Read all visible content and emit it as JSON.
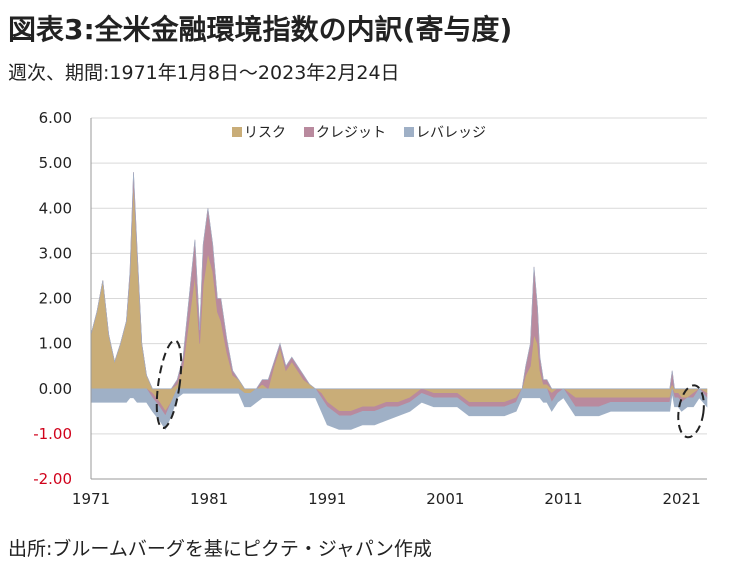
{
  "header": {
    "title": "図表3:全米金融環境指数の内訳(寄与度)",
    "subtitle": "週次、期間:1971年1月8日～2023年2月24日"
  },
  "footer": {
    "source": "出所:ブルームバーグを基にピクテ・ジャパン作成"
  },
  "colors": {
    "risk": "#c9ad78",
    "credit": "#b98a9e",
    "leverage": "#9fb0c6",
    "negative_tick": "#d0021b",
    "grid": "#d9d9d9",
    "annotation": "#222222"
  },
  "chart_data": {
    "type": "area",
    "stacked": true,
    "x_ticks": [
      "1971",
      "1981",
      "1991",
      "2001",
      "2011",
      "2021"
    ],
    "y_ticks": [
      "6.00",
      "5.00",
      "4.00",
      "3.00",
      "2.00",
      "1.00",
      "0.00",
      "-1.00",
      "-2.00"
    ],
    "ylim": [
      -2,
      6
    ],
    "xlim": [
      1971.0,
      2023.15
    ],
    "grid": true,
    "legend_position": "top-center",
    "x": [
      1971.0,
      1971.5,
      1972.0,
      1972.5,
      1973.0,
      1973.5,
      1974.0,
      1974.3,
      1974.6,
      1974.9,
      1975.3,
      1975.7,
      1976.2,
      1976.8,
      1977.3,
      1977.8,
      1978.3,
      1978.8,
      1979.3,
      1979.8,
      1980.2,
      1980.5,
      1980.9,
      1981.3,
      1981.7,
      1982.0,
      1982.5,
      1983.0,
      1983.5,
      1984.0,
      1984.5,
      1985.0,
      1985.5,
      1986.0,
      1986.5,
      1987.0,
      1987.5,
      1988.0,
      1988.5,
      1989.0,
      1989.5,
      1990.0,
      1990.5,
      1991.0,
      1992.0,
      1993.0,
      1994.0,
      1995.0,
      1996.0,
      1997.0,
      1998.0,
      1999.0,
      2000.0,
      2001.0,
      2002.0,
      2003.0,
      2004.0,
      2005.0,
      2006.0,
      2007.0,
      2007.5,
      2007.8,
      2008.2,
      2008.5,
      2008.8,
      2009.0,
      2009.3,
      2009.6,
      2010.0,
      2010.5,
      2011.0,
      2011.5,
      2012.0,
      2013.0,
      2014.0,
      2015.0,
      2016.0,
      2017.0,
      2018.0,
      2019.0,
      2020.0,
      2020.2,
      2020.4,
      2020.7,
      2021.0,
      2021.5,
      2022.0,
      2022.5,
      2023.15
    ],
    "series": [
      {
        "name": "リスク",
        "values": [
          1.2,
          1.7,
          2.4,
          1.2,
          0.6,
          1.0,
          1.5,
          2.5,
          4.6,
          3.0,
          1.0,
          0.3,
          -0.1,
          -0.3,
          -0.5,
          -0.3,
          0.1,
          0.5,
          1.5,
          2.5,
          1.0,
          2.3,
          3.0,
          2.6,
          1.7,
          1.5,
          0.8,
          0.3,
          0.2,
          -0.1,
          -0.1,
          0.0,
          0.1,
          0.0,
          0.5,
          0.9,
          0.4,
          0.6,
          0.4,
          0.2,
          0.1,
          0.0,
          -0.1,
          -0.3,
          -0.5,
          -0.5,
          -0.4,
          -0.4,
          -0.3,
          -0.3,
          -0.2,
          0.0,
          -0.1,
          -0.1,
          -0.1,
          -0.3,
          -0.3,
          -0.3,
          -0.3,
          -0.2,
          0.0,
          0.3,
          0.5,
          1.2,
          1.0,
          0.4,
          0.1,
          0.1,
          -0.1,
          0.0,
          0.0,
          -0.1,
          -0.2,
          -0.2,
          -0.2,
          -0.2,
          -0.2,
          -0.2,
          -0.2,
          -0.2,
          -0.2,
          0.1,
          -0.1,
          -0.1,
          -0.2,
          -0.2,
          -0.1,
          0.0,
          -0.1
        ]
      },
      {
        "name": "クレジット",
        "values": [
          0.0,
          0.0,
          0.0,
          0.0,
          0.0,
          0.0,
          0.0,
          0.1,
          0.2,
          0.1,
          0.0,
          0.0,
          -0.1,
          -0.1,
          -0.1,
          0.0,
          0.1,
          0.2,
          0.5,
          0.8,
          0.3,
          0.9,
          1.0,
          0.6,
          0.3,
          0.5,
          0.3,
          0.1,
          0.0,
          0.0,
          0.0,
          0.0,
          0.1,
          0.2,
          0.1,
          0.1,
          0.1,
          0.1,
          0.1,
          0.1,
          0.0,
          0.0,
          -0.1,
          -0.1,
          -0.1,
          -0.1,
          -0.1,
          -0.1,
          -0.1,
          -0.1,
          -0.1,
          -0.1,
          -0.1,
          -0.1,
          -0.1,
          -0.1,
          -0.1,
          -0.1,
          -0.1,
          -0.1,
          0.0,
          0.2,
          0.5,
          1.5,
          0.8,
          0.3,
          0.1,
          0.1,
          -0.2,
          -0.1,
          0.0,
          -0.1,
          -0.2,
          -0.2,
          -0.2,
          -0.1,
          -0.1,
          -0.1,
          -0.1,
          -0.1,
          -0.1,
          0.3,
          -0.1,
          -0.1,
          -0.1,
          0.0,
          -0.1,
          0.0,
          -0.1
        ]
      },
      {
        "name": "レバレッジ",
        "values": [
          -0.3,
          -0.3,
          -0.3,
          -0.3,
          -0.3,
          -0.3,
          -0.3,
          -0.2,
          -0.2,
          -0.3,
          -0.3,
          -0.3,
          -0.3,
          -0.3,
          -0.3,
          -0.3,
          -0.2,
          -0.1,
          -0.1,
          -0.1,
          -0.1,
          -0.1,
          -0.1,
          -0.1,
          -0.1,
          -0.1,
          -0.1,
          -0.1,
          -0.1,
          -0.3,
          -0.3,
          -0.3,
          -0.2,
          -0.2,
          -0.2,
          -0.2,
          -0.2,
          -0.2,
          -0.2,
          -0.2,
          -0.2,
          -0.2,
          -0.3,
          -0.4,
          -0.3,
          -0.3,
          -0.3,
          -0.3,
          -0.3,
          -0.2,
          -0.2,
          -0.2,
          -0.2,
          -0.2,
          -0.2,
          -0.2,
          -0.2,
          -0.2,
          -0.2,
          -0.2,
          -0.2,
          -0.2,
          -0.2,
          -0.2,
          -0.2,
          -0.2,
          -0.3,
          -0.3,
          -0.2,
          -0.2,
          -0.2,
          -0.2,
          -0.2,
          -0.2,
          -0.2,
          -0.2,
          -0.2,
          -0.2,
          -0.2,
          -0.2,
          -0.2,
          -0.1,
          -0.2,
          -0.2,
          -0.2,
          -0.2,
          -0.2,
          -0.2,
          -0.2
        ]
      }
    ],
    "annotations": [
      {
        "type": "dashed-ellipse",
        "x_center": 1977.6,
        "y_center": 0.1,
        "x_radius": 0.9,
        "y_radius": 0.98
      },
      {
        "type": "dashed-ellipse",
        "x_center": 2021.8,
        "y_center": -0.5,
        "x_radius": 1.05,
        "y_radius": 0.58
      }
    ]
  }
}
